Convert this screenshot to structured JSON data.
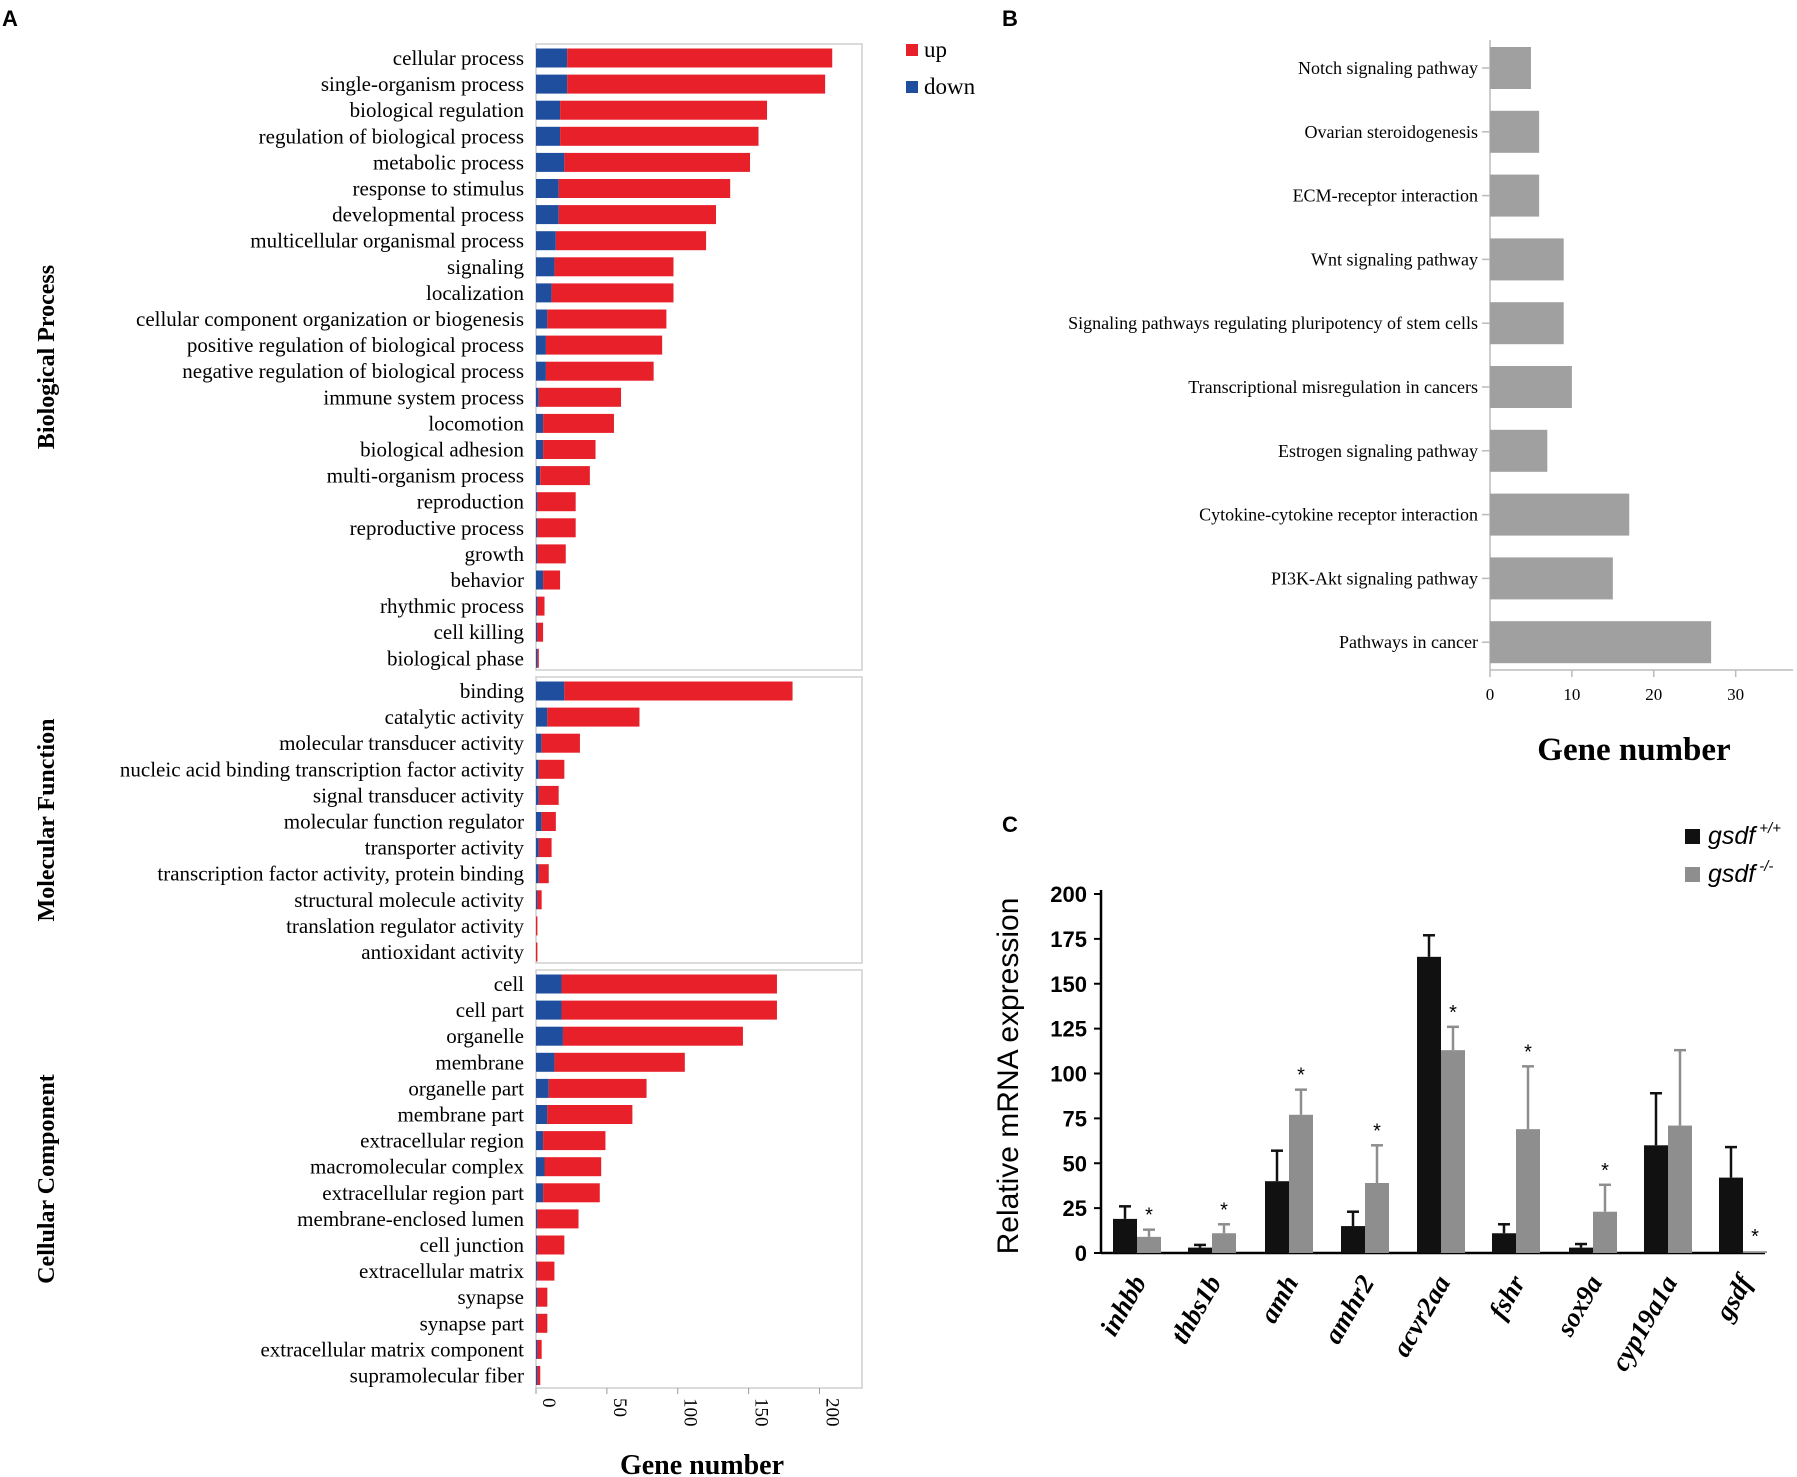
{
  "panel_labels": {
    "a": "A",
    "b": "B",
    "c": "C"
  },
  "chart_data": [
    {
      "id": "A",
      "type": "bar",
      "orientation": "horizontal",
      "stacked": true,
      "xlabel": "Gene number",
      "xlim": [
        0,
        230
      ],
      "xticks": [
        0,
        50,
        100,
        150,
        200
      ],
      "legend": {
        "position": "top-right",
        "entries": [
          {
            "name": "up",
            "color": "#e8202a"
          },
          {
            "name": "down",
            "color": "#1f4e9e"
          }
        ]
      },
      "groups": [
        {
          "name": "Biological Process",
          "categories": [
            "cellular process",
            "single-organism process",
            "biological regulation",
            "regulation of biological process",
            "metabolic process",
            "response to stimulus",
            "developmental process",
            "multicellular organismal process",
            "signaling",
            "localization",
            "cellular component organization or biogenesis",
            "positive regulation of biological process",
            "negative regulation of biological process",
            "immune system process",
            "locomotion",
            "biological adhesion",
            "multi-organism process",
            "reproduction",
            "reproductive process",
            "growth",
            "behavior",
            "rhythmic process",
            "cell killing",
            "biological phase"
          ],
          "series": [
            {
              "name": "down",
              "values": [
                22,
                22,
                17,
                17,
                20,
                16,
                16,
                14,
                13,
                11,
                8,
                7,
                7,
                2,
                5,
                5,
                3,
                1,
                1,
                1,
                5,
                1,
                1,
                1
              ]
            },
            {
              "name": "up",
              "values": [
                187,
                182,
                146,
                140,
                131,
                121,
                111,
                106,
                84,
                86,
                84,
                82,
                76,
                58,
                50,
                37,
                35,
                27,
                27,
                20,
                12,
                5,
                4,
                1
              ]
            }
          ]
        },
        {
          "name": "Molecular Function",
          "categories": [
            "binding",
            "catalytic activity",
            "molecular transducer activity",
            "nucleic acid binding transcription factor activity",
            "signal transducer activity",
            "molecular function regulator",
            "transporter activity",
            "transcription factor activity, protein binding",
            "structural molecule activity",
            "translation regulator activity",
            "antioxidant activity"
          ],
          "series": [
            {
              "name": "down",
              "values": [
                20,
                8,
                4,
                2,
                2,
                4,
                2,
                2,
                1,
                0,
                0
              ]
            },
            {
              "name": "up",
              "values": [
                161,
                65,
                27,
                18,
                14,
                10,
                9,
                7,
                3,
                1,
                1
              ]
            }
          ]
        },
        {
          "name": "Cellular Component",
          "categories": [
            "cell",
            "cell part",
            "organelle",
            "membrane",
            "organelle part",
            "membrane part",
            "extracellular region",
            "macromolecular complex",
            "extracellular region part",
            "membrane-enclosed lumen",
            "cell junction",
            "extracellular matrix",
            "synapse",
            "synapse part",
            "extracellular matrix component",
            "supramolecular fiber"
          ],
          "series": [
            {
              "name": "down",
              "values": [
                18,
                18,
                19,
                13,
                9,
                8,
                5,
                6,
                5,
                1,
                1,
                1,
                1,
                1,
                1,
                1
              ]
            },
            {
              "name": "up",
              "values": [
                152,
                152,
                127,
                92,
                69,
                60,
                44,
                40,
                40,
                29,
                19,
                12,
                7,
                7,
                3,
                2
              ]
            }
          ]
        }
      ]
    },
    {
      "id": "B",
      "type": "bar",
      "orientation": "horizontal",
      "xlabel": "Gene number",
      "xlim": [
        0,
        37
      ],
      "xticks": [
        0,
        10,
        20,
        30
      ],
      "color": "#a0a0a0",
      "categories": [
        "Notch signaling pathway",
        "Ovarian steroidogenesis",
        "ECM-receptor interaction",
        "Wnt signaling pathway",
        "Signaling pathways regulating pluripotency of stem cells",
        "Transcriptional misregulation in cancers",
        "Estrogen signaling pathway",
        "Cytokine-cytokine receptor interaction",
        "PI3K-Akt signaling pathway",
        "Pathways in cancer"
      ],
      "values": [
        5,
        6,
        6,
        9,
        9,
        10,
        7,
        17,
        15,
        27
      ]
    },
    {
      "id": "C",
      "type": "bar",
      "ylabel": "Relative mRNA expression",
      "ylim": [
        0,
        200
      ],
      "yticks": [
        0,
        25,
        50,
        75,
        100,
        125,
        150,
        175,
        200
      ],
      "categories": [
        "inhbb",
        "thbs1b",
        "amh",
        "amhr2",
        "acvr2aa",
        "fshr",
        "sox9a",
        "cyp19a1a",
        "gsdf"
      ],
      "series": [
        {
          "name": "gsdf",
          "superscript": "+/+",
          "color": "#111111",
          "values": [
            19,
            3,
            40,
            15,
            165,
            11,
            3,
            60,
            42
          ],
          "errors": [
            7,
            1.5,
            17,
            8,
            12,
            5,
            2,
            29,
            17
          ]
        },
        {
          "name": "gsdf",
          "superscript": "-/-",
          "color": "#8e8e8e",
          "values": [
            9,
            11,
            77,
            39,
            113,
            69,
            23,
            71,
            1
          ],
          "errors": [
            4,
            5,
            14,
            21,
            13,
            35,
            15,
            42,
            0
          ]
        }
      ],
      "significance": [
        true,
        true,
        true,
        true,
        true,
        true,
        true,
        false,
        true
      ],
      "significance_marker": "*"
    }
  ]
}
